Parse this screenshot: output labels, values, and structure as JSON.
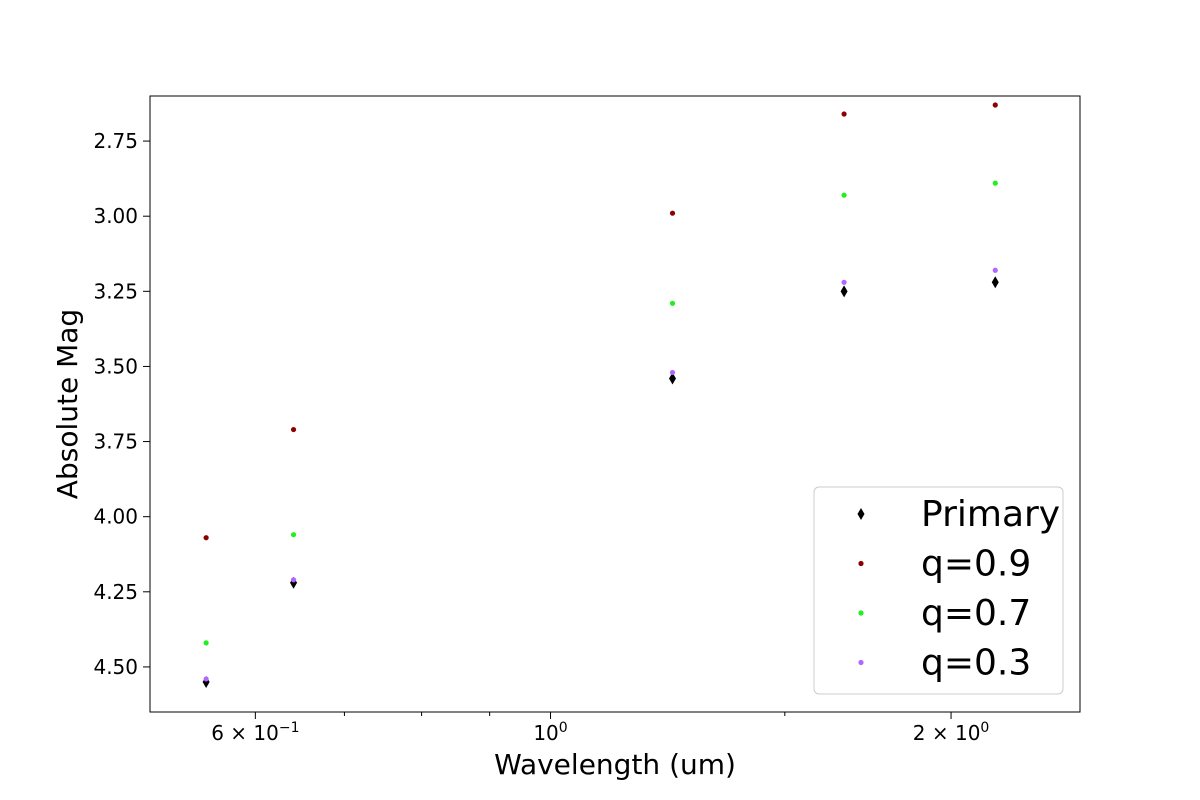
{
  "chart_data": {
    "type": "scatter",
    "title": "",
    "xlabel": "Wavelength (um)",
    "ylabel": "Absolute Mag",
    "x_scale": "log",
    "x_range": [
      0.5,
      2.5
    ],
    "y_range": [
      4.65,
      2.6
    ],
    "y_inverted": true,
    "grid": false,
    "x_ticks_major": [
      {
        "value": 0.6,
        "base": "6 × 10",
        "exp": "−1"
      },
      {
        "value": 1.0,
        "base": "10",
        "exp": "0"
      },
      {
        "value": 2.0,
        "base": "2 × 10",
        "exp": "0"
      }
    ],
    "x_ticks_minor": [
      0.7,
      0.8,
      0.9,
      1.5
    ],
    "y_ticks": [
      {
        "value": 2.75,
        "label": "2.75"
      },
      {
        "value": 3.0,
        "label": "3.00"
      },
      {
        "value": 3.25,
        "label": "3.25"
      },
      {
        "value": 3.5,
        "label": "3.50"
      },
      {
        "value": 3.75,
        "label": "3.75"
      },
      {
        "value": 4.0,
        "label": "4.00"
      },
      {
        "value": 4.25,
        "label": "4.25"
      },
      {
        "value": 4.5,
        "label": "4.50"
      }
    ],
    "legend_position": "lower-right",
    "series": [
      {
        "name": "Primary",
        "marker": "diamond",
        "color": "#000000",
        "x": [
          0.551,
          0.641,
          1.235,
          1.662,
          2.159
        ],
        "y": [
          4.55,
          4.22,
          3.54,
          3.25,
          3.22
        ]
      },
      {
        "name": "q=0.9",
        "marker": "dot",
        "color": "#8b0000",
        "x": [
          0.551,
          0.641,
          1.235,
          1.662,
          2.159
        ],
        "y": [
          4.07,
          3.71,
          2.99,
          2.66,
          2.63
        ]
      },
      {
        "name": "q=0.7",
        "marker": "dot",
        "color": "#22ee22",
        "x": [
          0.551,
          0.641,
          1.235,
          1.662,
          2.159
        ],
        "y": [
          4.42,
          4.06,
          3.29,
          2.93,
          2.89
        ]
      },
      {
        "name": "q=0.3",
        "marker": "dot",
        "color": "#b266ff",
        "x": [
          0.551,
          0.641,
          1.235,
          1.662,
          2.159
        ],
        "y": [
          4.54,
          4.21,
          3.52,
          3.22,
          3.18
        ]
      }
    ]
  }
}
